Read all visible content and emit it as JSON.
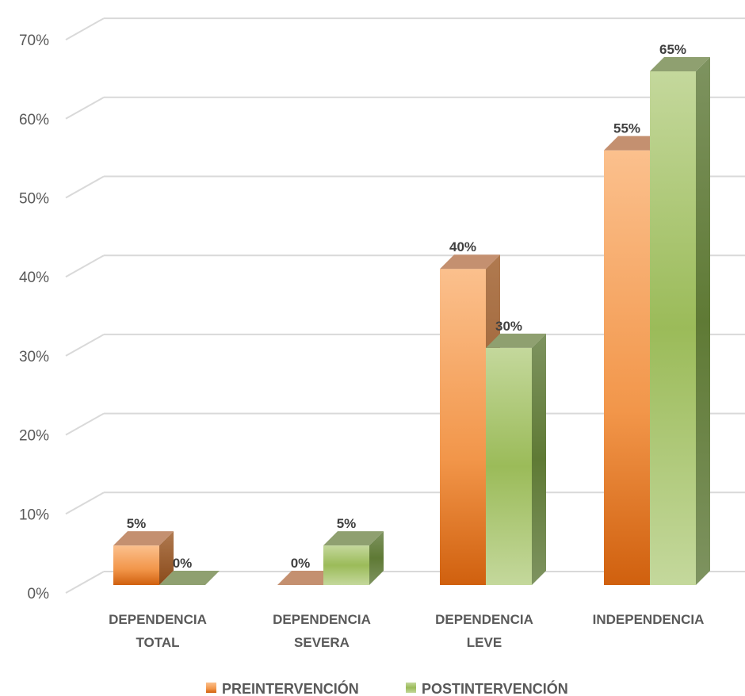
{
  "chart_data": {
    "type": "bar",
    "categories": [
      [
        "DEPENDENCIA",
        "TOTAL"
      ],
      [
        "DEPENDENCIA",
        "SEVERA"
      ],
      [
        "DEPENDENCIA",
        "LEVE"
      ],
      [
        "INDEPENDENCIA"
      ]
    ],
    "series": [
      {
        "name": "PREINTERVENCIÓN",
        "values": [
          5,
          0,
          40,
          55
        ],
        "labels": [
          "5%",
          "0%",
          "40%",
          "55%"
        ]
      },
      {
        "name": "POSTINTERVENCIÓN",
        "values": [
          0,
          5,
          30,
          65
        ],
        "labels": [
          "0%",
          "5%",
          "30%",
          "65%"
        ]
      }
    ],
    "yticks": [
      "0%",
      "10%",
      "20%",
      "30%",
      "40%",
      "50%",
      "60%",
      "70%"
    ],
    "ylim": [
      0,
      70
    ],
    "grid": true,
    "legend": "bottom",
    "three_d": true,
    "title": "",
    "xlabel": "",
    "ylabel": "",
    "colors": {
      "pre_top": "#FBC08D",
      "pre_bottom": "#D0600E",
      "pre_side": "#A0704A",
      "pre_cap": "#C49070",
      "post_light": "#C4D89C",
      "post_mid": "#9BBB59",
      "post_side": "#6E8550",
      "post_cap": "#8FA070",
      "grid": "#D9D9D9",
      "text": "#595959"
    }
  }
}
